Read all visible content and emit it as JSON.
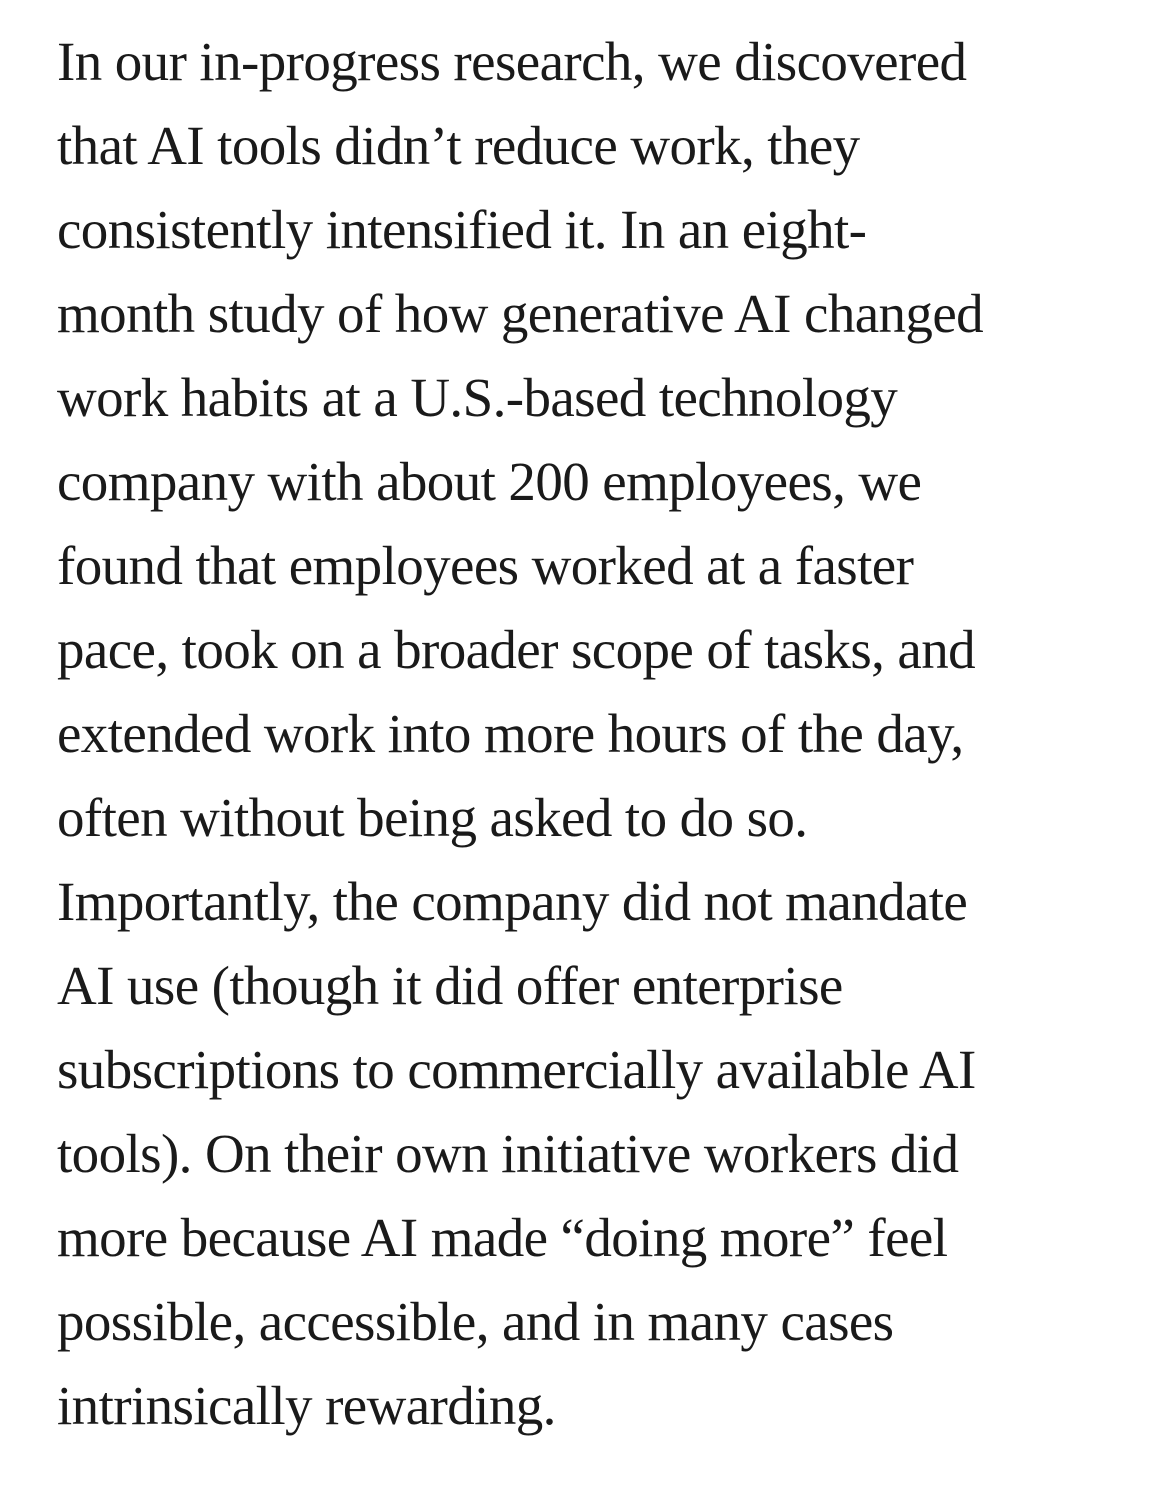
{
  "page": {
    "background_color": "#ffffff"
  },
  "article": {
    "text_color": "#1a1a1a",
    "full_text": "In our in-progress research, we discovered that AI tools didn’t reduce work, they consistently intensified it. In an eight-month study of how generative AI changed work habits at a U.S.-based technology company with about 200 employees, we found that employees worked at a faster pace, took on a broader scope of tasks, and extended work into more hours of the day, often without being asked to do so. Importantly, the company did not mandate AI use (though it did offer enterprise subscriptions to commercially available AI tools). On their own initiative workers did more because AI made “doing more” feel possible, accessible, and in many cases intrinsically rewarding.",
    "lines": [
      "In our in-progress research, we discovered",
      "that AI tools didn’t reduce work, they",
      "consistently intensified it. In an eight-",
      "month study of how generative AI changed",
      "work habits at a U.S.-based technology",
      "company with about 200 employees, we",
      "found that employees worked at a faster",
      "pace, took on a broader scope of tasks, and",
      "extended work into more hours of the day,",
      "often without being asked to do so.",
      "Importantly, the company did not mandate",
      "AI use (though it did offer enterprise",
      "subscriptions to commercially available AI",
      "tools). On their own initiative workers did",
      "more because AI made “doing more” feel",
      "possible, accessible, and in many cases",
      "intrinsically rewarding."
    ]
  }
}
